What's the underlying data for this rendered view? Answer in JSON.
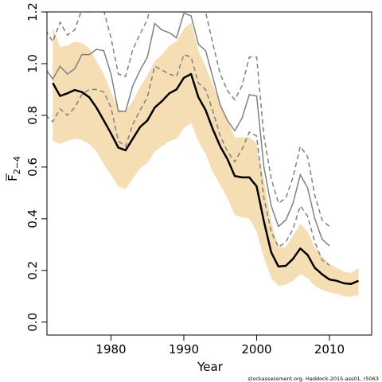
{
  "chart_data": {
    "type": "line",
    "xlabel": "Year",
    "ylabel": "F",
    "ylabel_subscript": "2−4",
    "xlim": [
      1971,
      2015
    ],
    "ylim": [
      0,
      1.2
    ],
    "x_ticks": [
      1980,
      1990,
      2000,
      2010
    ],
    "y_ticks": [
      0.0,
      0.2,
      0.4,
      0.6,
      0.8,
      1.0,
      1.2
    ],
    "y_tick_labels": [
      "0.0",
      "0.2",
      "0.4",
      "0.6",
      "0.8",
      "1.0",
      "1.2"
    ],
    "credit": "stockassessment.org, Haddock-2015-ass01, r5063",
    "colors": {
      "band": "#f5deb3",
      "estimate": "#000000",
      "other": "#808080"
    },
    "series": [
      {
        "role": "estimate",
        "x": [
          1972,
          1973,
          1974,
          1975,
          1976,
          1977,
          1978,
          1979,
          1980,
          1981,
          1982,
          1983,
          1984,
          1985,
          1986,
          1987,
          1988,
          1989,
          1990,
          1991,
          1992,
          1993,
          1994,
          1995,
          1996,
          1997,
          1998,
          1999,
          2000,
          2001,
          2002,
          2003,
          2004,
          2005,
          2006,
          2007,
          2008,
          2009,
          2010,
          2011,
          2012,
          2013,
          2014
        ],
        "y": [
          0.925,
          0.875,
          0.885,
          0.898,
          0.89,
          0.87,
          0.83,
          0.78,
          0.73,
          0.675,
          0.665,
          0.71,
          0.755,
          0.78,
          0.83,
          0.855,
          0.885,
          0.9,
          0.945,
          0.96,
          0.87,
          0.82,
          0.745,
          0.68,
          0.63,
          0.565,
          0.56,
          0.56,
          0.525,
          0.39,
          0.27,
          0.215,
          0.218,
          0.245,
          0.285,
          0.26,
          0.21,
          0.185,
          0.165,
          0.16,
          0.15,
          0.148,
          0.16
        ]
      },
      {
        "role": "confidence-band",
        "x": [
          1972,
          1973,
          1974,
          1975,
          1976,
          1977,
          1978,
          1979,
          1980,
          1981,
          1982,
          1983,
          1984,
          1985,
          1986,
          1987,
          1988,
          1989,
          1990,
          1991,
          1992,
          1993,
          1994,
          1995,
          1996,
          1997,
          1998,
          1999,
          2000,
          2001,
          2002,
          2003,
          2004,
          2005,
          2006,
          2007,
          2008,
          2009,
          2010,
          2011,
          2012,
          2013,
          2014
        ],
        "lower": [
          0.7,
          0.69,
          0.7,
          0.71,
          0.705,
          0.69,
          0.66,
          0.61,
          0.57,
          0.525,
          0.515,
          0.555,
          0.595,
          0.615,
          0.66,
          0.68,
          0.7,
          0.71,
          0.75,
          0.77,
          0.7,
          0.65,
          0.58,
          0.53,
          0.48,
          0.415,
          0.405,
          0.4,
          0.35,
          0.25,
          0.17,
          0.14,
          0.145,
          0.16,
          0.185,
          0.17,
          0.14,
          0.125,
          0.115,
          0.11,
          0.1,
          0.098,
          0.105
        ],
        "upper": [
          1.14,
          1.065,
          1.07,
          1.085,
          1.08,
          1.06,
          1.01,
          0.96,
          0.89,
          0.825,
          0.815,
          0.855,
          0.91,
          0.955,
          1.01,
          1.035,
          1.07,
          1.085,
          1.135,
          1.16,
          1.05,
          0.99,
          0.915,
          0.845,
          0.78,
          0.715,
          0.715,
          0.715,
          0.69,
          0.55,
          0.39,
          0.29,
          0.29,
          0.335,
          0.38,
          0.35,
          0.29,
          0.255,
          0.225,
          0.21,
          0.195,
          0.19,
          0.21
        ]
      },
      {
        "role": "other-assessment",
        "x": [
          1971,
          1972,
          1973,
          1974,
          1975,
          1976,
          1977,
          1978,
          1979,
          1980,
          1981,
          1982,
          1983,
          1984,
          1985,
          1986,
          1987,
          1988,
          1989,
          1990,
          1991,
          1992,
          1993,
          1994,
          1995,
          1996,
          1997,
          1998,
          1999,
          2000,
          2001,
          2002,
          2003,
          2004,
          2005,
          2006,
          2007,
          2008,
          2009,
          2010
        ],
        "y": [
          0.98,
          0.94,
          0.99,
          0.96,
          0.98,
          1.035,
          1.035,
          1.055,
          1.05,
          0.96,
          0.815,
          0.815,
          0.915,
          0.975,
          1.025,
          1.155,
          1.13,
          1.12,
          1.1,
          1.195,
          1.185,
          1.075,
          1.05,
          0.945,
          0.84,
          0.78,
          0.74,
          0.79,
          0.88,
          0.875,
          0.6,
          0.45,
          0.37,
          0.395,
          0.46,
          0.57,
          0.52,
          0.4,
          0.32,
          0.295
        ]
      },
      {
        "role": "other-lower",
        "x": [
          1971,
          1972,
          1973,
          1974,
          1975,
          1976,
          1977,
          1978,
          1979,
          1980,
          1981,
          1982,
          1983,
          1984,
          1985,
          1986,
          1987,
          1988,
          1989,
          1990,
          1991,
          1992,
          1993,
          1994,
          1995,
          1996,
          1997,
          1998,
          1999,
          2000,
          2001,
          2002,
          2003,
          2004,
          2005,
          2006,
          2007,
          2008,
          2009,
          2010
        ],
        "y": [
          0.8,
          0.775,
          0.825,
          0.8,
          0.83,
          0.88,
          0.9,
          0.9,
          0.89,
          0.83,
          0.7,
          0.68,
          0.765,
          0.82,
          0.87,
          0.99,
          0.975,
          0.96,
          0.95,
          1.035,
          1.025,
          0.925,
          0.9,
          0.815,
          0.72,
          0.66,
          0.62,
          0.67,
          0.735,
          0.72,
          0.48,
          0.35,
          0.29,
          0.31,
          0.36,
          0.45,
          0.41,
          0.31,
          0.24,
          0.22
        ]
      },
      {
        "role": "other-upper",
        "x": [
          1971,
          1972,
          1973,
          1974,
          1975,
          1976,
          1977,
          1978,
          1979,
          1980,
          1981,
          1982,
          1983,
          1984,
          1985,
          1986,
          1987,
          1988,
          1989,
          1990,
          1991,
          1992,
          1993,
          1994,
          1995,
          1996,
          1997,
          1998,
          1999,
          2000,
          2001,
          2002,
          2003,
          2004,
          2005,
          2006,
          2007,
          2008,
          2009,
          2010
        ],
        "y": [
          1.13,
          1.085,
          1.16,
          1.11,
          1.13,
          1.21,
          1.2,
          1.215,
          1.205,
          1.1,
          0.96,
          0.95,
          1.055,
          1.115,
          1.17,
          1.3,
          1.285,
          1.275,
          1.255,
          1.355,
          1.34,
          1.225,
          1.2,
          1.075,
          0.96,
          0.895,
          0.86,
          0.915,
          1.025,
          1.025,
          0.72,
          0.555,
          0.46,
          0.48,
          0.56,
          0.68,
          0.64,
          0.49,
          0.395,
          0.37
        ]
      }
    ]
  }
}
